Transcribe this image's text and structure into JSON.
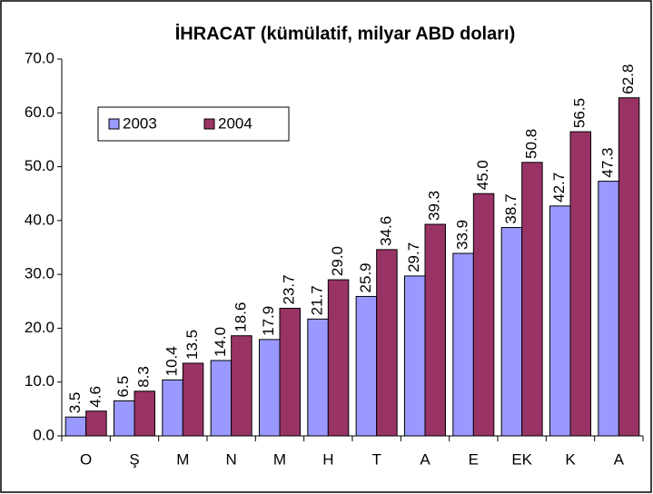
{
  "chart_data": {
    "type": "bar",
    "title": "İHRACAT (kümülatif, milyar ABD doları)",
    "categories": [
      "O",
      "Ş",
      "M",
      "N",
      "M",
      "H",
      "T",
      "A",
      "E",
      "EK",
      "K",
      "A"
    ],
    "series": [
      {
        "name": "2003",
        "color": "#9999ff",
        "values": [
          3.5,
          6.5,
          10.4,
          14.0,
          17.9,
          21.7,
          25.9,
          29.7,
          33.9,
          38.7,
          42.7,
          47.3
        ],
        "value_labels": [
          "3.5",
          "6.5",
          "10.4",
          "14.0",
          "17.9",
          "21.7",
          "25.9",
          "29.7",
          "33.9",
          "38.7",
          "42.7",
          "47.3"
        ]
      },
      {
        "name": "2004",
        "color": "#993366",
        "values": [
          4.6,
          8.3,
          13.5,
          18.6,
          23.7,
          29.0,
          34.6,
          39.3,
          45.0,
          50.8,
          56.5,
          62.8
        ],
        "value_labels": [
          "4.6",
          "8.3",
          "13.5",
          "18.6",
          "23.7",
          "29.0",
          "34.6",
          "39.3",
          "45.0",
          "50.8",
          "56.5",
          "62.8"
        ]
      }
    ],
    "ylim": [
      0,
      70
    ],
    "yticks": [
      {
        "value": 0,
        "label": "0.0"
      },
      {
        "value": 10,
        "label": "10.0"
      },
      {
        "value": 20,
        "label": "20.0"
      },
      {
        "value": 30,
        "label": "30.0"
      },
      {
        "value": 40,
        "label": "40.0"
      },
      {
        "value": 50,
        "label": "50.0"
      },
      {
        "value": 60,
        "label": "60.0"
      },
      {
        "value": 70,
        "label": "70.0"
      }
    ],
    "legend": "upper left"
  }
}
